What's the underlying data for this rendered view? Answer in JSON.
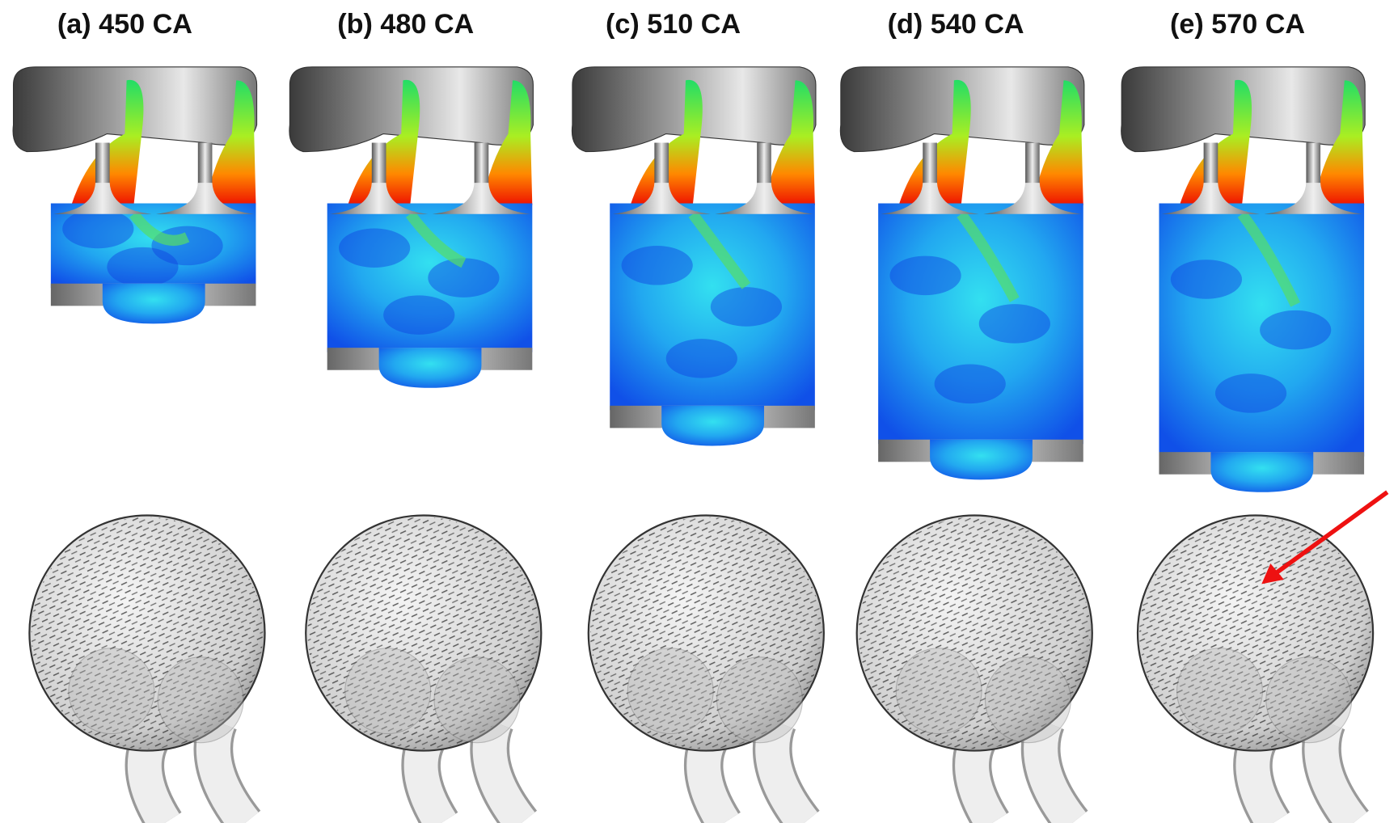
{
  "panels": [
    {
      "label": "(a) 450 CA"
    },
    {
      "label": "(b) 480 CA"
    },
    {
      "label": "(c) 510 CA"
    },
    {
      "label": "(d) 540 CA"
    },
    {
      "label": "(e) 570 CA"
    }
  ]
}
